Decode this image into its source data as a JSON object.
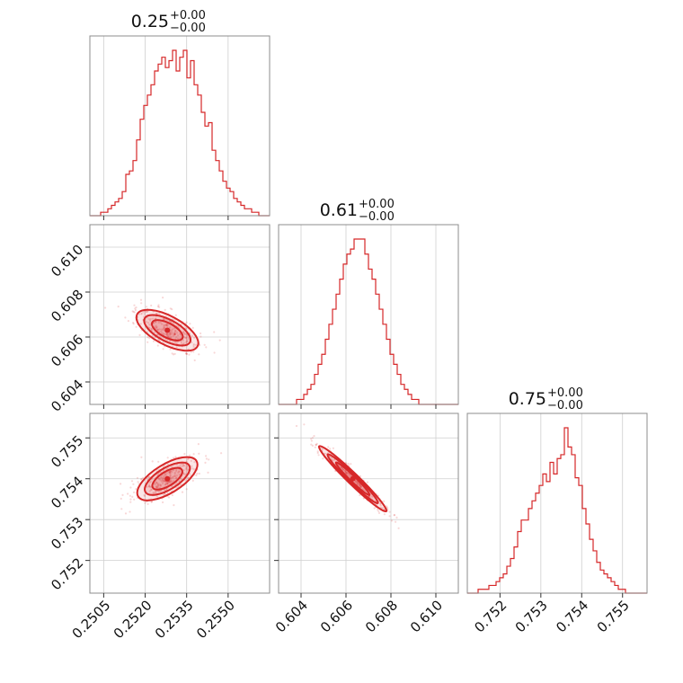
{
  "chart_data": {
    "type": "corner",
    "color": "#d62728",
    "parameters": [
      {
        "title": "0.25",
        "upper_error": "+0.00",
        "lower_error": "−0.00",
        "range": [
          0.25,
          0.2565
        ],
        "ticks": [
          0.2505,
          0.252,
          0.2535,
          0.255
        ],
        "tick_labels": [
          "0.2505",
          "0.2520",
          "0.2535",
          "0.2550"
        ],
        "histogram": [
          0,
          0,
          0,
          1,
          1,
          2,
          3,
          4,
          5,
          7,
          12,
          13,
          16,
          22,
          28,
          32,
          35,
          38,
          42,
          44,
          46,
          43,
          45,
          48,
          42,
          46,
          48,
          40,
          45,
          38,
          35,
          30,
          26,
          27,
          19,
          16,
          13,
          10,
          8,
          7,
          5,
          4,
          3,
          2,
          2,
          1,
          1,
          0,
          0,
          0
        ]
      },
      {
        "title": "0.61",
        "upper_error": "+0.00",
        "lower_error": "−0.00",
        "range": [
          0.603,
          0.611
        ],
        "ticks": [
          0.604,
          0.606,
          0.608,
          0.61
        ],
        "tick_labels": [
          "0.604",
          "0.606",
          "0.608",
          "0.610"
        ],
        "histogram": [
          0,
          0,
          0,
          0,
          0,
          1,
          1,
          2,
          3,
          4,
          6,
          8,
          10,
          13,
          16,
          19,
          22,
          25,
          28,
          30,
          31,
          33,
          33,
          33,
          30,
          27,
          25,
          22,
          19,
          16,
          13,
          10,
          8,
          6,
          4,
          3,
          2,
          1,
          1,
          0,
          0,
          0,
          0,
          0,
          0,
          0,
          0,
          0,
          0,
          0
        ]
      },
      {
        "title": "0.75",
        "upper_error": "+0.00",
        "lower_error": "−0.00",
        "range": [
          0.7512,
          0.7556
        ],
        "ticks": [
          0.752,
          0.753,
          0.754,
          0.755
        ],
        "tick_labels": [
          "0.752",
          "0.753",
          "0.754",
          "0.755"
        ],
        "y_ticks": [
          0.752,
          0.753,
          0.754,
          0.755
        ],
        "histogram": [
          0,
          0,
          0,
          1,
          1,
          1,
          2,
          2,
          3,
          4,
          5,
          7,
          9,
          12,
          16,
          19,
          19,
          22,
          24,
          26,
          28,
          31,
          29,
          34,
          31,
          35,
          36,
          43,
          38,
          36,
          30,
          28,
          22,
          18,
          14,
          11,
          8,
          6,
          5,
          4,
          3,
          2,
          1,
          1,
          0,
          0,
          0,
          0,
          0,
          0
        ]
      }
    ],
    "correlations": [
      {
        "row": 1,
        "col": 0,
        "cov": -0.6,
        "mean": [
          0.2528,
          0.6063
        ]
      },
      {
        "row": 2,
        "col": 0,
        "cov": 0.7,
        "mean": [
          0.2528,
          0.754
        ]
      },
      {
        "row": 2,
        "col": 1,
        "cov": -0.97,
        "mean": [
          0.6063,
          0.754
        ]
      }
    ],
    "grid": true
  }
}
